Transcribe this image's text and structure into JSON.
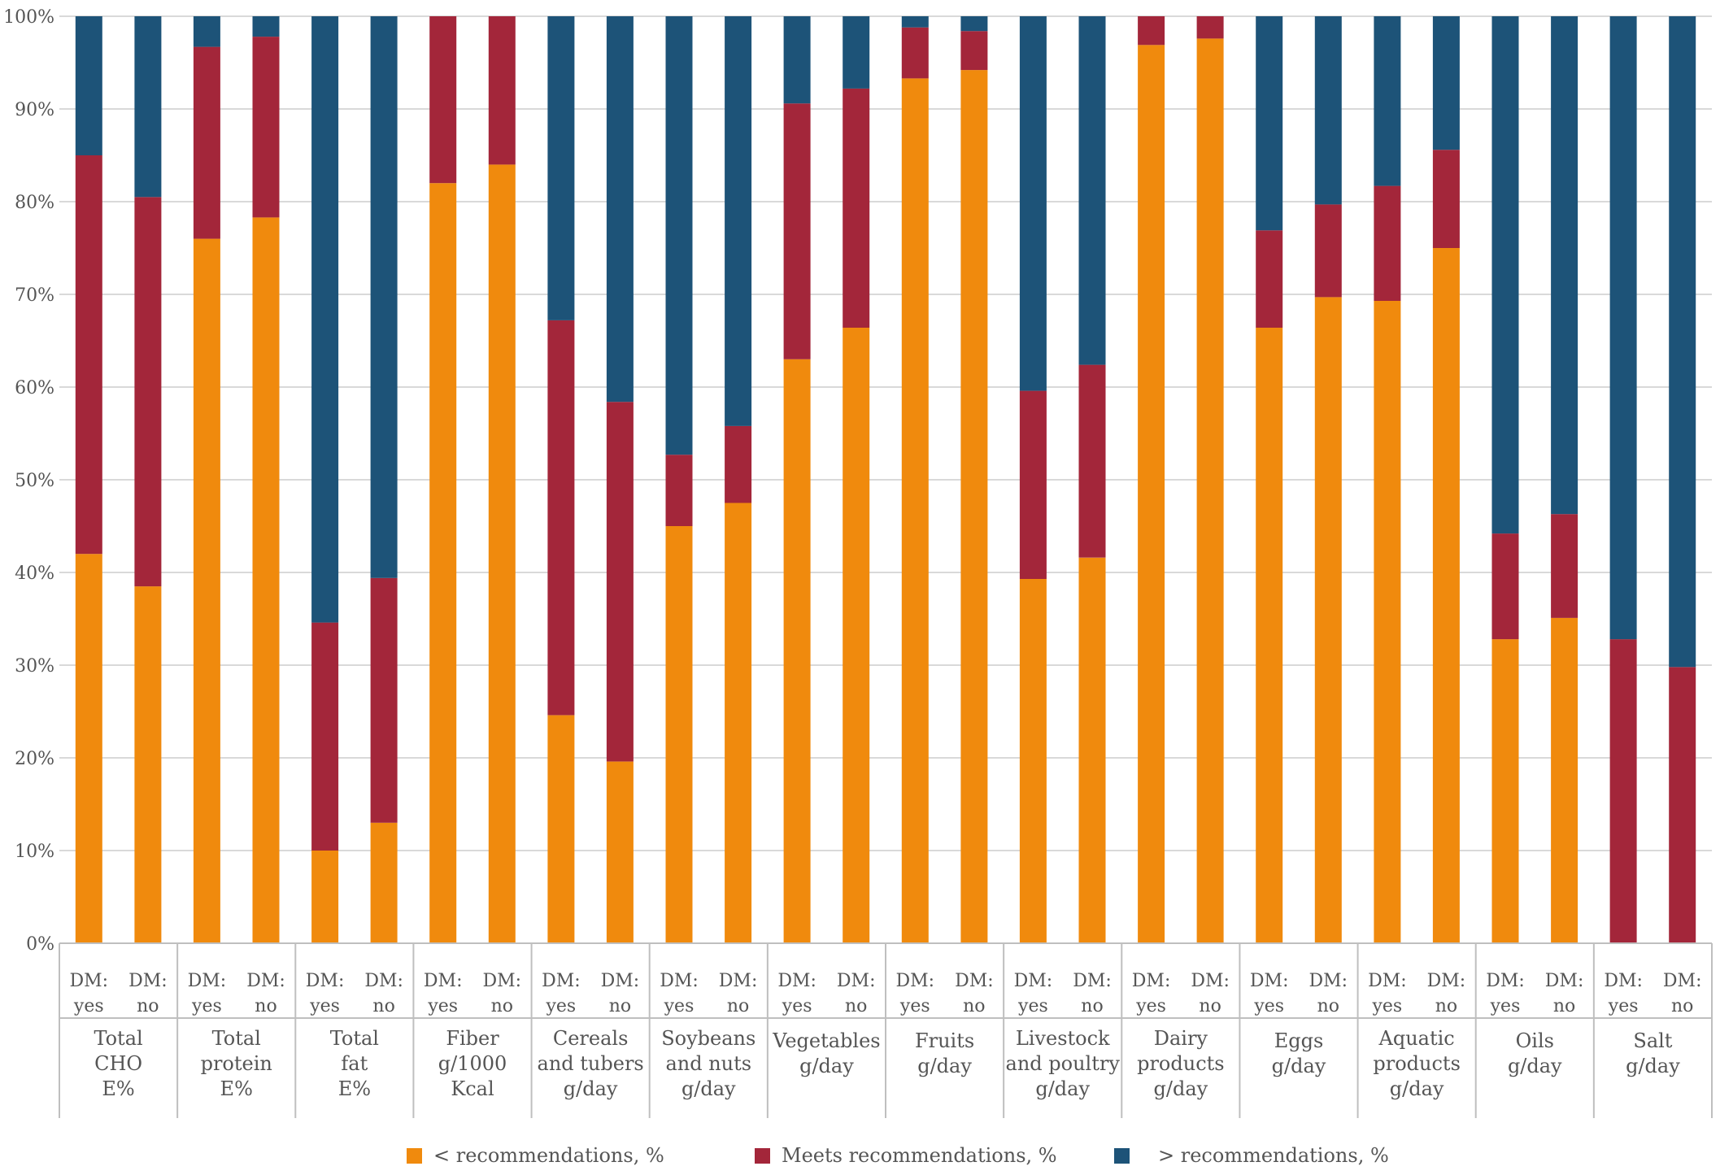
{
  "chart_data": {
    "type": "bar",
    "stacked": true,
    "percent_stacked": true,
    "ylim": [
      0,
      100
    ],
    "yticks": [
      "0%",
      "10%",
      "20%",
      "30%",
      "40%",
      "50%",
      "60%",
      "70%",
      "80%",
      "90%",
      "100%"
    ],
    "grid": true,
    "legend_position": "bottom",
    "colors": {
      "below": "#F08A0D",
      "meets": "#A3263A",
      "above": "#1D5378"
    },
    "series": [
      {
        "key": "below",
        "name": "< recommendations, %"
      },
      {
        "key": "meets",
        "name": "Meets recommendations, %"
      },
      {
        "key": "above",
        "name": "> recommendations, %"
      }
    ],
    "groups": [
      {
        "label": [
          "Total",
          "CHO",
          "E%"
        ],
        "bars": [
          {
            "label": [
              "DM:",
              "yes"
            ],
            "below": 42,
            "meets": 43,
            "above": 15
          },
          {
            "label": [
              "DM:",
              "no"
            ],
            "below": 38.5,
            "meets": 42,
            "above": 19.5
          }
        ]
      },
      {
        "label": [
          "Total",
          "protein",
          "E%"
        ],
        "bars": [
          {
            "label": [
              "DM:",
              "yes"
            ],
            "below": 76,
            "meets": 20.7,
            "above": 3.3
          },
          {
            "label": [
              "DM:",
              "no"
            ],
            "below": 78.3,
            "meets": 19.5,
            "above": 2.2
          }
        ]
      },
      {
        "label": [
          "Total",
          "fat",
          "E%"
        ],
        "bars": [
          {
            "label": [
              "DM:",
              "yes"
            ],
            "below": 10,
            "meets": 24.6,
            "above": 65.4
          },
          {
            "label": [
              "DM:",
              "no"
            ],
            "below": 13,
            "meets": 26.4,
            "above": 60.6
          }
        ]
      },
      {
        "label": [
          "Fiber",
          "g/1000",
          "Kcal"
        ],
        "bars": [
          {
            "label": [
              "DM:",
              "yes"
            ],
            "below": 82,
            "meets": 18,
            "above": 0
          },
          {
            "label": [
              "DM:",
              "no"
            ],
            "below": 84,
            "meets": 16,
            "above": 0
          }
        ]
      },
      {
        "label": [
          "Cereals",
          "and tubers",
          "g/day"
        ],
        "bars": [
          {
            "label": [
              "DM:",
              "yes"
            ],
            "below": 24.6,
            "meets": 42.6,
            "above": 32.8
          },
          {
            "label": [
              "DM:",
              "no"
            ],
            "below": 19.6,
            "meets": 38.8,
            "above": 41.6
          }
        ]
      },
      {
        "label": [
          "Soybeans",
          "and nuts",
          "g/day"
        ],
        "bars": [
          {
            "label": [
              "DM:",
              "yes"
            ],
            "below": 45,
            "meets": 7.7,
            "above": 47.3
          },
          {
            "label": [
              "DM:",
              "no"
            ],
            "below": 47.5,
            "meets": 8.3,
            "above": 44.2
          }
        ]
      },
      {
        "label": [
          "Vegetables",
          "g/day"
        ],
        "bars": [
          {
            "label": [
              "DM:",
              "yes"
            ],
            "below": 63,
            "meets": 27.6,
            "above": 9.4
          },
          {
            "label": [
              "DM:",
              "no"
            ],
            "below": 66.4,
            "meets": 25.8,
            "above": 7.8
          }
        ]
      },
      {
        "label": [
          "Fruits",
          "g/day"
        ],
        "bars": [
          {
            "label": [
              "DM:",
              "yes"
            ],
            "below": 93.3,
            "meets": 5.5,
            "above": 1.2
          },
          {
            "label": [
              "DM:",
              "no"
            ],
            "below": 94.2,
            "meets": 4.2,
            "above": 1.6
          }
        ]
      },
      {
        "label": [
          "Livestock",
          "and  poultry",
          "g/day"
        ],
        "bars": [
          {
            "label": [
              "DM:",
              "yes"
            ],
            "below": 39.3,
            "meets": 20.3,
            "above": 40.4
          },
          {
            "label": [
              "DM:",
              "no"
            ],
            "below": 41.6,
            "meets": 20.8,
            "above": 37.6
          }
        ]
      },
      {
        "label": [
          "Dairy",
          "products",
          "g/day"
        ],
        "bars": [
          {
            "label": [
              "DM:",
              "yes"
            ],
            "below": 96.9,
            "meets": 3.1,
            "above": 0
          },
          {
            "label": [
              "DM:",
              "no"
            ],
            "below": 97.6,
            "meets": 2.4,
            "above": 0
          }
        ]
      },
      {
        "label": [
          "Eggs",
          "g/day"
        ],
        "bars": [
          {
            "label": [
              "DM:",
              "yes"
            ],
            "below": 66.4,
            "meets": 10.5,
            "above": 23.1
          },
          {
            "label": [
              "DM:",
              "no"
            ],
            "below": 69.7,
            "meets": 10,
            "above": 20.3
          }
        ]
      },
      {
        "label": [
          "Aquatic",
          "products",
          "g/day"
        ],
        "bars": [
          {
            "label": [
              "DM:",
              "yes"
            ],
            "below": 69.3,
            "meets": 12.4,
            "above": 18.3
          },
          {
            "label": [
              "DM:",
              "no"
            ],
            "below": 75,
            "meets": 10.6,
            "above": 14.4
          }
        ]
      },
      {
        "label": [
          "Oils",
          "g/day"
        ],
        "bars": [
          {
            "label": [
              "DM:",
              "yes"
            ],
            "below": 32.8,
            "meets": 11.4,
            "above": 55.8
          },
          {
            "label": [
              "DM:",
              "no"
            ],
            "below": 35.1,
            "meets": 11.2,
            "above": 53.7
          }
        ]
      },
      {
        "label": [
          "Salt",
          "g/day"
        ],
        "bars": [
          {
            "label": [
              "DM:",
              "yes"
            ],
            "below": 0,
            "meets": 32.8,
            "above": 67.2
          },
          {
            "label": [
              "DM:",
              "no"
            ],
            "below": 0,
            "meets": 29.8,
            "above": 70.2
          }
        ]
      }
    ]
  }
}
